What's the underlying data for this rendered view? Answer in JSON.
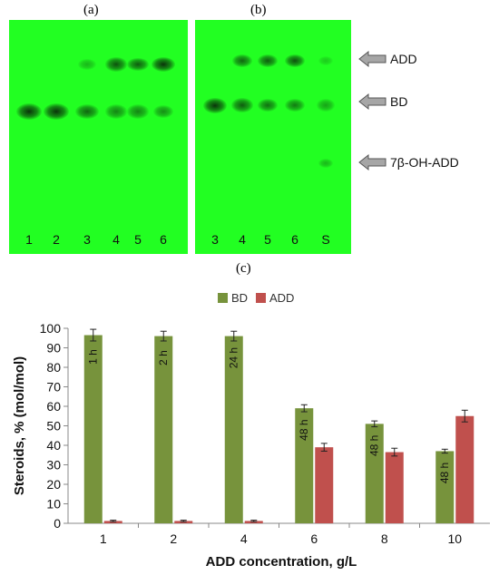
{
  "panel_labels": {
    "a": "(a)",
    "b": "(b)",
    "c": "(c)"
  },
  "tlc_a": {
    "lanes": [
      "1",
      "2",
      "3",
      "4",
      "5",
      "6"
    ],
    "add_spot_intensity": [
      0,
      0,
      0.35,
      0.85,
      0.8,
      1.0
    ],
    "bd_spot_intensity": [
      1.0,
      1.0,
      0.75,
      0.6,
      0.6,
      0.55
    ]
  },
  "tlc_b": {
    "lanes": [
      "3",
      "4",
      "5",
      "6",
      "S"
    ],
    "add_spot_intensity": [
      0,
      0.75,
      0.8,
      0.85,
      0.25
    ],
    "bd_spot_intensity": [
      1.0,
      0.8,
      0.7,
      0.65,
      0.45
    ],
    "oh_spot_intensity": [
      0,
      0,
      0,
      0,
      0.35
    ]
  },
  "markers": [
    "ADD",
    "BD",
    "7β-OH-ADD"
  ],
  "colors": {
    "bd": "#77933C",
    "add": "#C0504D",
    "tlc_bg": "#22ff22",
    "spot": "#0a2a0a",
    "arrow": "#a6a6a6"
  },
  "chart_data": {
    "type": "bar",
    "categories": [
      "1",
      "2",
      "4",
      "6",
      "8",
      "10"
    ],
    "series": [
      {
        "name": "BD",
        "values": [
          96.5,
          96,
          96,
          59,
          51,
          37
        ],
        "errors": [
          3,
          2.5,
          2.5,
          1.8,
          1.5,
          1.0
        ]
      },
      {
        "name": "ADD",
        "values": [
          1.2,
          1.2,
          1.2,
          39,
          36.5,
          55
        ],
        "errors": [
          0.4,
          0.4,
          0.4,
          2,
          2,
          3
        ]
      }
    ],
    "bar_annotations": [
      "1 h",
      "2 h",
      "24 h",
      "48 h",
      "48 h",
      "48 h"
    ],
    "xlabel": "ADD concentration, g/L",
    "ylabel": "Steroids, % (mol/mol)",
    "ylim": [
      0,
      100
    ],
    "yticks": [
      0,
      10,
      20,
      30,
      40,
      50,
      60,
      70,
      80,
      90,
      100
    ],
    "legend_position": "top-center",
    "grid": false
  }
}
